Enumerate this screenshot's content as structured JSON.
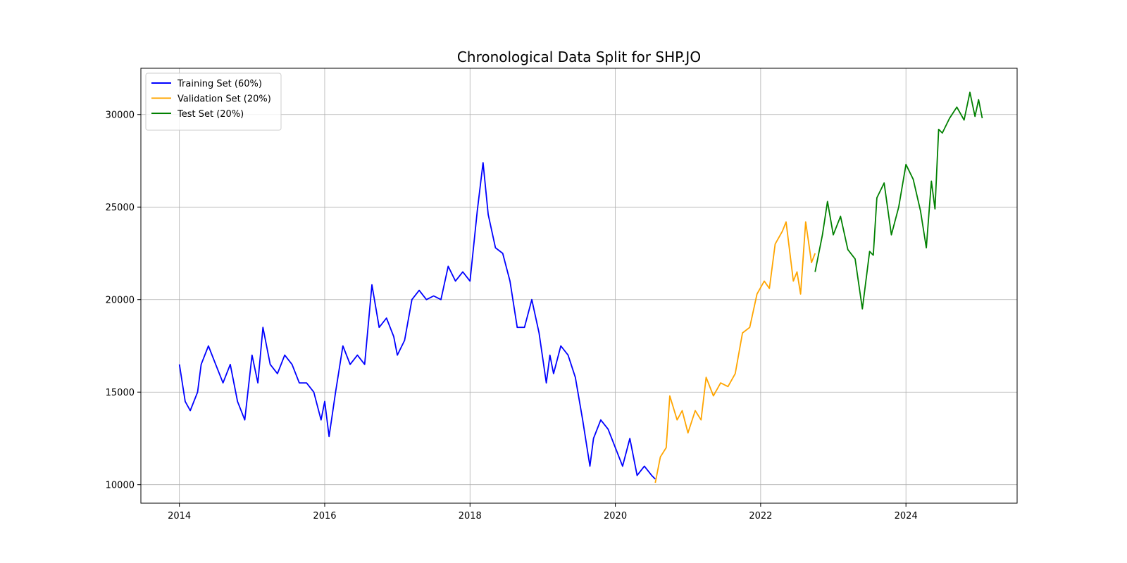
{
  "chart_data": {
    "type": "line",
    "title": "Chronological Data Split for SHP.JO",
    "xlabel": "",
    "ylabel": "",
    "xlim": [
      2013.47,
      2025.53
    ],
    "ylim": [
      9000,
      32500
    ],
    "x_ticks": [
      2014,
      2016,
      2018,
      2020,
      2022,
      2024
    ],
    "x_tick_labels": [
      "2014",
      "2016",
      "2018",
      "2020",
      "2022",
      "2024"
    ],
    "y_ticks": [
      10000,
      15000,
      20000,
      25000,
      30000
    ],
    "y_tick_labels": [
      "10000",
      "15000",
      "20000",
      "25000",
      "30000"
    ],
    "grid": true,
    "legend_position": "upper-left",
    "series": [
      {
        "name": "Training Set (60%)",
        "color": "#0000ff",
        "x": [
          2014.0,
          2014.08,
          2014.15,
          2014.25,
          2014.3,
          2014.4,
          2014.5,
          2014.6,
          2014.7,
          2014.8,
          2014.9,
          2015.0,
          2015.08,
          2015.15,
          2015.25,
          2015.35,
          2015.45,
          2015.55,
          2015.65,
          2015.75,
          2015.85,
          2015.95,
          2016.0,
          2016.06,
          2016.15,
          2016.25,
          2016.35,
          2016.45,
          2016.55,
          2016.65,
          2016.75,
          2016.85,
          2016.95,
          2017.0,
          2017.1,
          2017.2,
          2017.3,
          2017.4,
          2017.5,
          2017.6,
          2017.7,
          2017.8,
          2017.9,
          2018.0,
          2018.1,
          2018.18,
          2018.25,
          2018.35,
          2018.45,
          2018.55,
          2018.65,
          2018.75,
          2018.85,
          2018.95,
          2019.05,
          2019.1,
          2019.15,
          2019.25,
          2019.35,
          2019.45,
          2019.55,
          2019.65,
          2019.7,
          2019.8,
          2019.9,
          2020.0,
          2020.1,
          2020.2,
          2020.3,
          2020.4,
          2020.5,
          2020.55
        ],
        "y": [
          16500,
          14500,
          14000,
          15000,
          16500,
          17500,
          16500,
          15500,
          16500,
          14500,
          13500,
          17000,
          15500,
          18500,
          16500,
          16000,
          17000,
          16500,
          15500,
          15500,
          15000,
          13500,
          14500,
          12600,
          15000,
          17500,
          16500,
          17000,
          16500,
          20800,
          18500,
          19000,
          18000,
          17000,
          17800,
          20000,
          20500,
          20000,
          20200,
          20000,
          21800,
          21000,
          21500,
          21000,
          24800,
          27400,
          24600,
          22800,
          22500,
          21000,
          18500,
          18500,
          20000,
          18200,
          15500,
          17000,
          16000,
          17500,
          17000,
          15800,
          13500,
          11000,
          12500,
          13500,
          13000,
          12000,
          11000,
          12500,
          10500,
          11000,
          10500,
          10300
        ]
      },
      {
        "name": "Validation Set (20%)",
        "color": "#ffa500",
        "x": [
          2020.55,
          2020.62,
          2020.7,
          2020.75,
          2020.85,
          2020.92,
          2021.0,
          2021.1,
          2021.18,
          2021.25,
          2021.35,
          2021.45,
          2021.55,
          2021.65,
          2021.75,
          2021.85,
          2021.95,
          2022.05,
          2022.12,
          2022.2,
          2022.3,
          2022.35,
          2022.45,
          2022.5,
          2022.55,
          2022.62,
          2022.7,
          2022.75
        ],
        "y": [
          10100,
          11500,
          12000,
          14800,
          13500,
          14000,
          12800,
          14000,
          13500,
          15800,
          14800,
          15500,
          15300,
          16000,
          18200,
          18500,
          20300,
          21000,
          20600,
          23000,
          23700,
          24200,
          21000,
          21500,
          20300,
          24200,
          22000,
          22500
        ]
      },
      {
        "name": "Test Set (20%)",
        "color": "#008000",
        "x": [
          2022.75,
          2022.85,
          2022.92,
          2023.0,
          2023.1,
          2023.2,
          2023.3,
          2023.4,
          2023.5,
          2023.55,
          2023.6,
          2023.7,
          2023.8,
          2023.9,
          2024.0,
          2024.1,
          2024.2,
          2024.28,
          2024.35,
          2024.4,
          2024.45,
          2024.5,
          2024.6,
          2024.7,
          2024.8,
          2024.88,
          2024.95,
          2025.0,
          2025.05
        ],
        "y": [
          21500,
          23500,
          25300,
          23500,
          24500,
          22700,
          22200,
          19500,
          22600,
          22400,
          25500,
          26300,
          23500,
          25000,
          27300,
          26500,
          24800,
          22800,
          26400,
          24900,
          29200,
          29000,
          29800,
          30400,
          29700,
          31200,
          29900,
          30800,
          29800
        ]
      }
    ]
  }
}
